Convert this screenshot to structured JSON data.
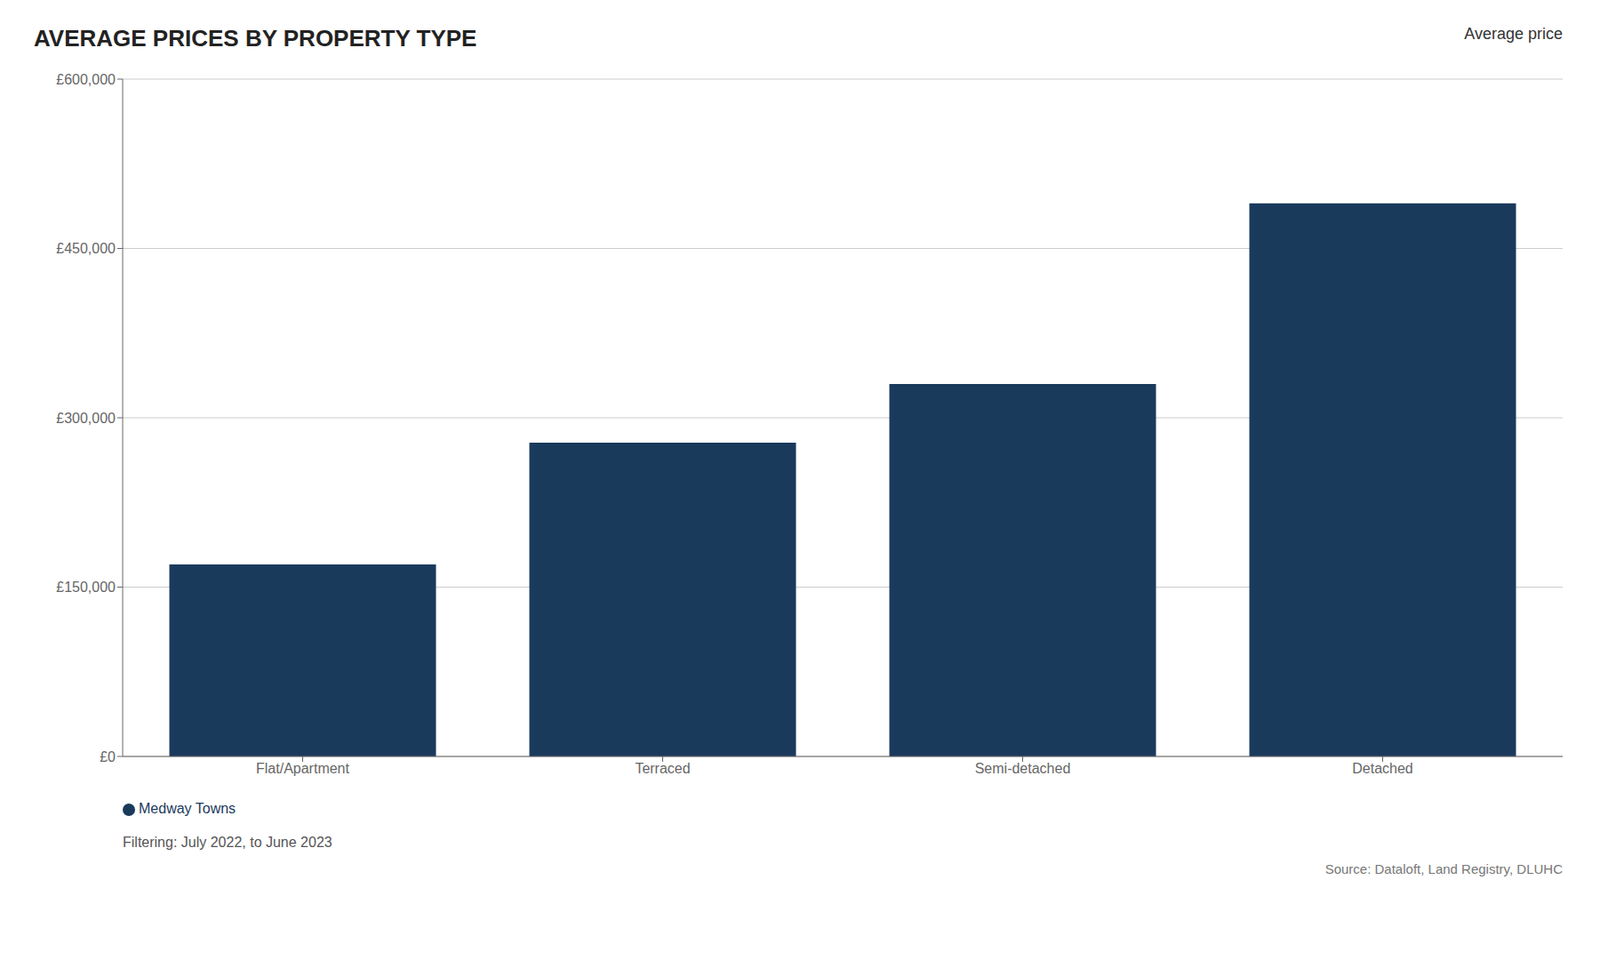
{
  "chart_data": {
    "type": "bar",
    "title": "AVERAGE PRICES BY PROPERTY TYPE",
    "categories": [
      "Flat/Apartment",
      "Terraced",
      "Semi-detached",
      "Detached"
    ],
    "series": [
      {
        "name": "Medway Towns",
        "color": "#1a3a5c",
        "values": [
          170000,
          278000,
          330000,
          490000
        ]
      }
    ],
    "ylim": [
      0,
      600000
    ],
    "yticks": [
      {
        "value": 0,
        "label": "£0"
      },
      {
        "value": 150000,
        "label": "£150,000"
      },
      {
        "value": 300000,
        "label": "£300,000"
      },
      {
        "value": 450000,
        "label": "£450,000"
      },
      {
        "value": 600000,
        "label": "£600,000"
      }
    ],
    "grid": true,
    "legend": "bottom",
    "annotations": [
      "Average price",
      "Filtering: July 2022, to June 2023",
      "Source: Dataloft, Land Registry, DLUHC"
    ]
  }
}
